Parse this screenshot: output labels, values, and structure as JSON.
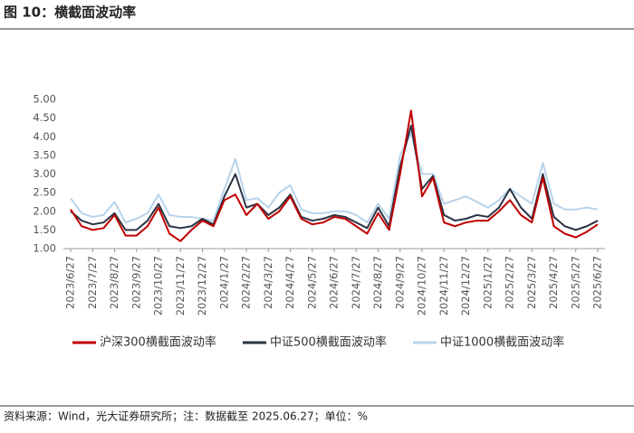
{
  "title": "图 10：横截面波动率",
  "source": "资料来源：Wind，光大证券研究所；注：数据截至 2025.06.27；单位：%",
  "chart_data": {
    "type": "line",
    "categories": [
      "2023/6/27",
      null,
      "2023/7/27",
      null,
      "2023/8/27",
      null,
      "2023/9/27",
      null,
      "2023/10/27",
      null,
      "2023/11/27",
      null,
      "2023/12/27",
      null,
      "2024/1/27",
      null,
      "2024/2/27",
      null,
      "2024/3/27",
      null,
      "2024/4/27",
      null,
      "2024/5/27",
      null,
      "2024/6/27",
      null,
      "2024/7/27",
      null,
      "2024/8/27",
      null,
      "2024/9/27",
      null,
      "2024/10/27",
      null,
      "2024/11/27",
      null,
      "2024/12/27",
      null,
      "2025/1/27",
      null,
      "2025/2/27",
      null,
      "2025/3/27",
      null,
      "2025/4/27",
      null,
      "2025/5/27",
      null,
      "2025/6/27"
    ],
    "series": [
      {
        "name": "沪深300横截面波动率",
        "color": "#c00000",
        "values": [
          2.05,
          1.6,
          1.5,
          1.55,
          1.9,
          1.35,
          1.35,
          1.6,
          2.1,
          1.4,
          1.2,
          1.5,
          1.75,
          1.6,
          2.3,
          2.45,
          1.9,
          2.2,
          1.8,
          2.0,
          2.4,
          1.8,
          1.65,
          1.7,
          1.85,
          1.8,
          1.6,
          1.4,
          1.95,
          1.5,
          3.0,
          4.7,
          2.4,
          2.9,
          1.7,
          1.6,
          1.7,
          1.75,
          1.75,
          2.0,
          2.3,
          1.9,
          1.7,
          2.9,
          1.6,
          1.4,
          1.3,
          1.45,
          1.65
        ]
      },
      {
        "name": "中证500横截面波动率",
        "color": "#2b3445",
        "values": [
          2.0,
          1.75,
          1.65,
          1.7,
          1.95,
          1.5,
          1.5,
          1.75,
          2.2,
          1.6,
          1.55,
          1.6,
          1.8,
          1.65,
          2.4,
          3.0,
          2.1,
          2.2,
          1.9,
          2.1,
          2.45,
          1.85,
          1.75,
          1.8,
          1.9,
          1.85,
          1.7,
          1.55,
          2.1,
          1.6,
          3.2,
          4.3,
          2.6,
          2.95,
          1.9,
          1.75,
          1.8,
          1.9,
          1.85,
          2.1,
          2.6,
          2.1,
          1.8,
          3.0,
          1.85,
          1.6,
          1.5,
          1.6,
          1.75
        ]
      },
      {
        "name": "中证1000横截面波动率",
        "color": "#b8d3ea",
        "values": [
          2.35,
          1.95,
          1.85,
          1.9,
          2.25,
          1.7,
          1.8,
          1.95,
          2.45,
          1.9,
          1.85,
          1.85,
          1.8,
          1.75,
          2.6,
          3.4,
          2.3,
          2.35,
          2.1,
          2.5,
          2.7,
          2.05,
          1.95,
          1.95,
          2.0,
          2.0,
          1.9,
          1.7,
          2.2,
          1.8,
          3.5,
          4.1,
          3.0,
          3.0,
          2.2,
          2.3,
          2.4,
          2.25,
          2.1,
          2.3,
          2.6,
          2.4,
          2.2,
          3.3,
          2.2,
          2.05,
          2.05,
          2.1,
          2.05
        ]
      }
    ],
    "ylim": [
      1.0,
      5.0
    ],
    "yticks": [
      {
        "value": 1.0,
        "label": "1.00"
      },
      {
        "value": 1.5,
        "label": "1.50"
      },
      {
        "value": 2.0,
        "label": "2.00"
      },
      {
        "value": 2.5,
        "label": "2.50"
      },
      {
        "value": 3.0,
        "label": "3.00"
      },
      {
        "value": 3.5,
        "label": "3.50"
      },
      {
        "value": 4.0,
        "label": "4.00"
      },
      {
        "value": 4.5,
        "label": "4.50"
      },
      {
        "value": 5.0,
        "label": "5.00"
      }
    ],
    "legend": "bottom"
  }
}
